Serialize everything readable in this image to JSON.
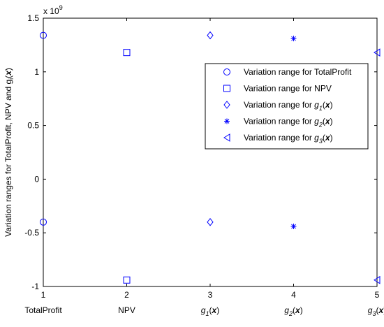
{
  "chart_data": {
    "type": "scatter",
    "title": "",
    "xlabel": "",
    "ylabel": "Variation ranges for TotalProfit, NPV and g_i(x)",
    "y_multiplier": "x 10",
    "y_multiplier_exp": "9",
    "xlim": [
      1,
      5
    ],
    "ylim": [
      -1.0,
      1.5
    ],
    "grid": false,
    "legend_position": "upper-right",
    "x_ticks": [
      1,
      2,
      3,
      4,
      5
    ],
    "x_tick_labels": [
      "1",
      "2",
      "3",
      "4",
      "5"
    ],
    "x_category_labels": [
      {
        "text": "TotalProfit",
        "sub": "",
        "suffix": ""
      },
      {
        "text": "NPV",
        "sub": "",
        "suffix": ""
      },
      {
        "text": "g",
        "sub": "1",
        "suffix": "(x)"
      },
      {
        "text": "g",
        "sub": "2",
        "suffix": "(x)"
      },
      {
        "text": "g",
        "sub": "3",
        "suffix": "(x)"
      }
    ],
    "y_ticks": [
      -1,
      -0.5,
      0,
      0.5,
      1,
      1.5
    ],
    "y_tick_labels": [
      "-1",
      "-0.5",
      "0",
      "0.5",
      "1",
      "1.5"
    ],
    "color": "#0000ff",
    "series": [
      {
        "name": "Variation range for TotalProfit",
        "marker": "circle",
        "x": [
          1,
          1
        ],
        "y": [
          1.34,
          -0.4
        ]
      },
      {
        "name": "Variation range for NPV",
        "marker": "square",
        "x": [
          2,
          2
        ],
        "y": [
          1.18,
          -0.94
        ]
      },
      {
        "name": "Variation range for g1(x)",
        "marker": "diamond",
        "x": [
          3,
          3
        ],
        "y": [
          1.34,
          -0.4
        ]
      },
      {
        "name": "Variation range for g2(x)",
        "marker": "star",
        "x": [
          4,
          4
        ],
        "y": [
          1.31,
          -0.44
        ]
      },
      {
        "name": "Variation range for g3(x)",
        "marker": "triangle-left",
        "x": [
          5,
          5
        ],
        "y": [
          1.18,
          -0.94
        ]
      }
    ],
    "legend": [
      {
        "marker": "circle",
        "text": "Variation range for TotalProfit",
        "sub": "",
        "suffix": ""
      },
      {
        "marker": "square",
        "text": "Variation range for NPV",
        "sub": "",
        "suffix": ""
      },
      {
        "marker": "diamond",
        "text": "Variation range for g",
        "sub": "1",
        "suffix": "(x)"
      },
      {
        "marker": "star",
        "text": "Variation range for g",
        "sub": "2",
        "suffix": "(x)"
      },
      {
        "marker": "triangle-left",
        "text": "Variation range for g",
        "sub": "3",
        "suffix": "(x)"
      }
    ]
  }
}
